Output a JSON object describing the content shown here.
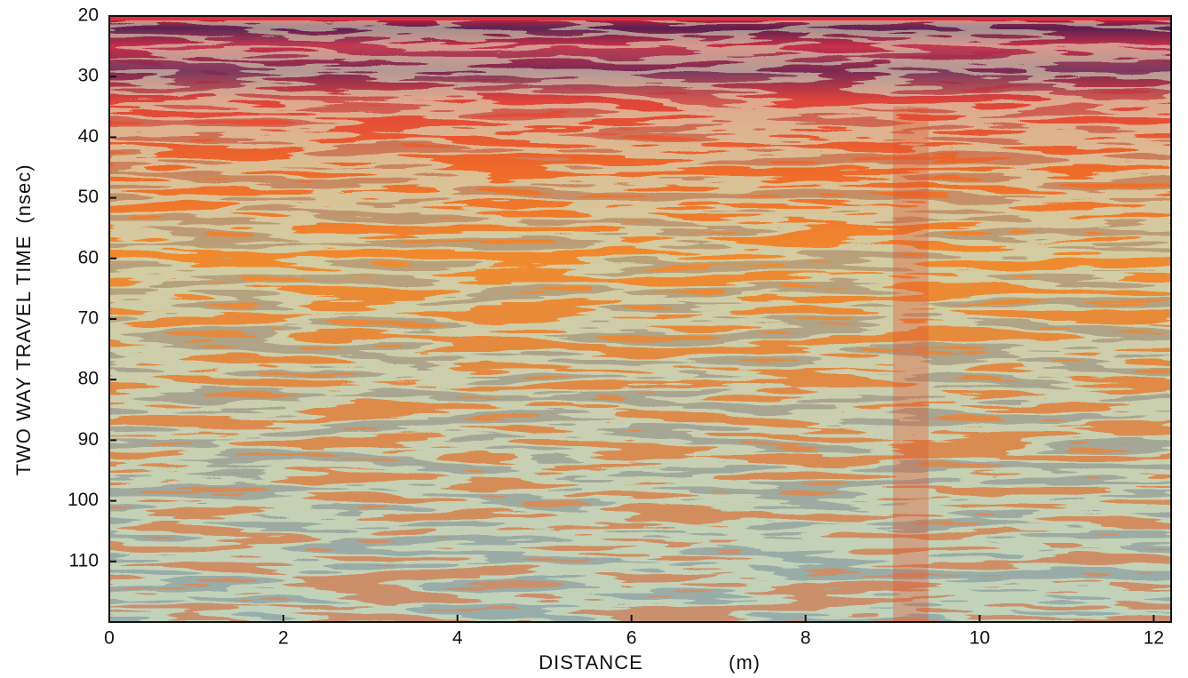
{
  "chart_data": {
    "type": "radargram",
    "x_label": "DISTANCE",
    "x_unit": "(m)",
    "y_label": "TWO WAY TRAVEL TIME",
    "y_unit": "(nsec)",
    "xlim": [
      0,
      12.2
    ],
    "xticks": [
      0,
      2,
      4,
      6,
      8,
      10,
      12
    ],
    "ylim": [
      20,
      120
    ],
    "yticks": [
      20,
      30,
      40,
      50,
      60,
      70,
      80,
      90,
      100,
      110
    ],
    "y_inverted": true
  }
}
